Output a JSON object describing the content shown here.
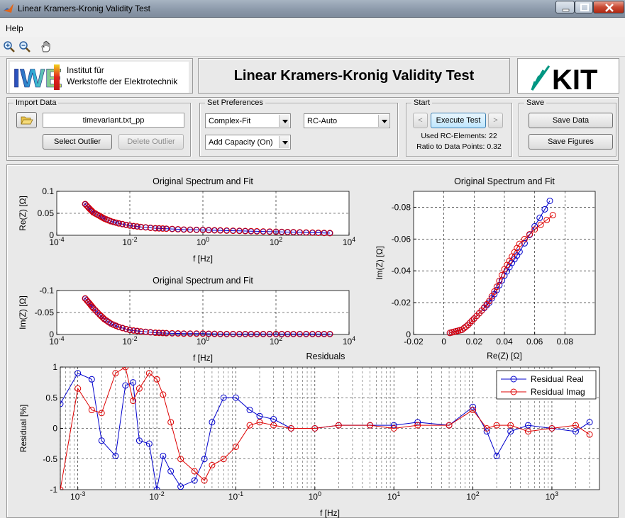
{
  "window": {
    "title": "Linear Kramers-Kronig Validity Test"
  },
  "menu": {
    "help": "Help"
  },
  "toolbar": {
    "icons": [
      "zoom-in-icon",
      "zoom-out-icon",
      "pan-hand-icon"
    ]
  },
  "header": {
    "iwe_logo_letters": "IWE",
    "iwe_line1": "Institut für",
    "iwe_line2": "Werkstoffe der Elektrotechnik",
    "title": "Linear Kramers-Kronig Validity Test",
    "kit_logo": "KIT"
  },
  "import_data": {
    "label": "Import Data",
    "filename": "timevariant.txt_pp",
    "select_outlier": "Select Outlier",
    "delete_outlier": "Delete Outlier"
  },
  "preferences": {
    "label": "Set Preferences",
    "fit_mode": "Complex-Fit",
    "rc_mode": "RC-Auto",
    "capacity": "Add Capacity (On)"
  },
  "start": {
    "label": "Start",
    "prev": "<",
    "execute": "Execute Test",
    "next": ">",
    "used_rc": "Used RC-Elements: 22",
    "ratio": "Ratio to Data Points: 0.32"
  },
  "save": {
    "label": "Save",
    "save_data": "Save Data",
    "save_figures": "Save Figures"
  },
  "colors": {
    "fit": "#0000cc",
    "data": "#dd0000",
    "axes_bg": "#ffffff"
  },
  "chart_data": [
    {
      "type": "scatter",
      "title": "Original Spectrum and Fit",
      "xlabel": "f [Hz]",
      "ylabel": "Re(Z) [Ω]",
      "xscale": "log",
      "xlim": [
        0.0001,
        10000
      ],
      "ylim": [
        0,
        0.1
      ],
      "xticks": [
        "10^-4",
        "10^-2",
        "10^0",
        "10^2",
        "10^4"
      ],
      "yticks": [
        "0",
        "0.05",
        "0.1"
      ],
      "grid": true,
      "series": [
        {
          "x": [
            0.0006,
            0.0008,
            0.001,
            0.0015,
            0.002,
            0.003,
            0.005,
            0.01,
            0.02,
            0.05,
            0.1,
            0.3,
            1,
            3,
            10,
            30,
            100,
            300,
            1000,
            3000
          ],
          "y": [
            0.071,
            0.06,
            0.052,
            0.044,
            0.038,
            0.032,
            0.027,
            0.022,
            0.019,
            0.016,
            0.015,
            0.013,
            0.012,
            0.011,
            0.01,
            0.009,
            0.008,
            0.007,
            0.006,
            0.005
          ]
        }
      ]
    },
    {
      "type": "scatter",
      "title": "Original Spectrum and Fit",
      "xlabel": "f [Hz]",
      "ylabel": "Im(Z) [Ω]",
      "xscale": "log",
      "xlim": [
        0.0001,
        10000
      ],
      "ylim": [
        0,
        -0.1
      ],
      "xticks": [
        "10^-4",
        "10^-2",
        "10^0",
        "10^2",
        "10^4"
      ],
      "yticks": [
        "0",
        "-0.05",
        "-0.1"
      ],
      "grid": true,
      "series": [
        {
          "x": [
            0.0006,
            0.0008,
            0.001,
            0.0015,
            0.002,
            0.003,
            0.005,
            0.01,
            0.02,
            0.05,
            0.1,
            0.3,
            1,
            3,
            10,
            30,
            100,
            300,
            1000,
            3000
          ],
          "y": [
            -0.082,
            -0.07,
            -0.06,
            -0.045,
            -0.035,
            -0.025,
            -0.017,
            -0.01,
            -0.007,
            -0.004,
            -0.003,
            -0.002,
            -0.002,
            -0.001,
            -0.001,
            -0.001,
            -0.001,
            -0.001,
            -0.001,
            -0.001
          ]
        }
      ]
    },
    {
      "type": "line",
      "title": "Original Spectrum and Fit",
      "xlabel": "Re(Z) [Ω]",
      "ylabel": "Im(Z) [Ω]",
      "xlim": [
        -0.02,
        0.1
      ],
      "ylim": [
        0,
        -0.09
      ],
      "xticks": [
        "-0.02",
        "0",
        "0.02",
        "0.04",
        "0.06",
        "0.08"
      ],
      "yticks": [
        "0",
        "-0.02",
        "-0.04",
        "-0.06",
        "-0.08"
      ],
      "grid": true,
      "series": [
        {
          "color": "#0000cc",
          "x": [
            0.004,
            0.008,
            0.012,
            0.016,
            0.02,
            0.025,
            0.03,
            0.035,
            0.04,
            0.045,
            0.05,
            0.06,
            0.07
          ],
          "y": [
            -0.001,
            -0.002,
            -0.003,
            -0.006,
            -0.01,
            -0.015,
            -0.02,
            -0.028,
            -0.037,
            -0.045,
            -0.052,
            -0.068,
            -0.084
          ]
        },
        {
          "color": "#dd0000",
          "x": [
            0.004,
            0.008,
            0.012,
            0.016,
            0.02,
            0.025,
            0.03,
            0.035,
            0.04,
            0.045,
            0.05,
            0.06,
            0.072
          ],
          "y": [
            -0.001,
            -0.002,
            -0.003,
            -0.006,
            -0.01,
            -0.015,
            -0.021,
            -0.03,
            -0.041,
            -0.049,
            -0.057,
            -0.066,
            -0.075
          ]
        }
      ]
    },
    {
      "type": "line",
      "title": "Residuals",
      "xlabel": "f [Hz]",
      "ylabel": "Residual [%]",
      "xscale": "log",
      "xlim": [
        0.0006,
        4000
      ],
      "ylim": [
        -1,
        1
      ],
      "xticks": [
        "10^-3",
        "10^-2",
        "10^-1",
        "10^0",
        "10^1",
        "10^2",
        "10^3"
      ],
      "yticks": [
        "-1",
        "-0.5",
        "0",
        "0.5",
        "1"
      ],
      "grid": true,
      "legend": "top-right",
      "series": [
        {
          "name": "Residual Real",
          "color": "#0000cc",
          "x": [
            0.0006,
            0.001,
            0.0015,
            0.002,
            0.003,
            0.004,
            0.005,
            0.006,
            0.008,
            0.01,
            0.012,
            0.015,
            0.02,
            0.03,
            0.04,
            0.05,
            0.07,
            0.1,
            0.15,
            0.2,
            0.3,
            0.5,
            1,
            2,
            5,
            10,
            20,
            50,
            100,
            150,
            200,
            300,
            500,
            1000,
            2000,
            3000
          ],
          "y": [
            0.4,
            0.9,
            0.8,
            -0.2,
            -0.45,
            0.7,
            0.75,
            -0.2,
            -0.25,
            -1.0,
            -0.45,
            -0.7,
            -0.95,
            -0.85,
            -0.5,
            0.1,
            0.5,
            0.5,
            0.3,
            0.2,
            0.15,
            0.0,
            0.0,
            0.05,
            0.05,
            0.05,
            0.1,
            0.05,
            0.35,
            -0.05,
            -0.45,
            -0.05,
            0.05,
            0.0,
            -0.05,
            0.1
          ]
        },
        {
          "name": "Residual Imag",
          "color": "#dd0000",
          "x": [
            0.0006,
            0.001,
            0.0015,
            0.002,
            0.003,
            0.004,
            0.005,
            0.006,
            0.008,
            0.01,
            0.012,
            0.015,
            0.02,
            0.03,
            0.04,
            0.05,
            0.07,
            0.1,
            0.15,
            0.2,
            0.3,
            0.5,
            1,
            2,
            5,
            10,
            20,
            50,
            100,
            150,
            200,
            300,
            500,
            1000,
            2000,
            3000
          ],
          "y": [
            -1.0,
            0.65,
            0.3,
            0.25,
            0.9,
            1.0,
            0.45,
            0.65,
            0.9,
            0.8,
            0.55,
            0.1,
            -0.5,
            -0.7,
            -0.85,
            -0.6,
            -0.5,
            -0.3,
            0.05,
            0.1,
            0.05,
            0.0,
            0.0,
            0.05,
            0.05,
            0.0,
            0.05,
            0.05,
            0.3,
            0.0,
            0.05,
            0.05,
            -0.05,
            0.0,
            0.05,
            -0.1
          ]
        }
      ]
    }
  ]
}
